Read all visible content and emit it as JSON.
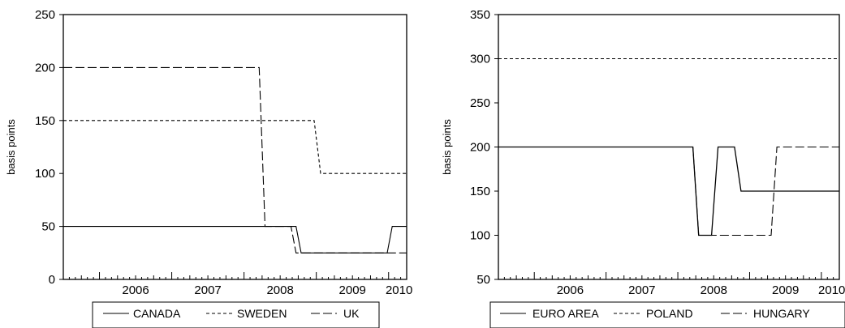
{
  "chart_data": [
    {
      "type": "line",
      "ylabel": "basis points",
      "xlabel": "",
      "ylim": [
        0,
        250
      ],
      "yticks": [
        0,
        50,
        100,
        150,
        200,
        250
      ],
      "xlim": [
        2005.5,
        2010.25
      ],
      "xtick_labels": [
        "2006",
        "2007",
        "2008",
        "2009",
        "2010"
      ],
      "legend_position": "bottom",
      "grid": false,
      "series": [
        {
          "name": "CANADA",
          "dash": "solid",
          "x": [
            2005.5,
            2008.72,
            2008.79,
            2009.98,
            2010.05,
            2010.25
          ],
          "y": [
            50,
            50,
            25,
            25,
            50,
            50
          ]
        },
        {
          "name": "SWEDEN",
          "dash": "short",
          "x": [
            2005.5,
            2008.97,
            2009.06,
            2010.25
          ],
          "y": [
            150,
            150,
            100,
            100
          ]
        },
        {
          "name": "UK",
          "dash": "long",
          "x": [
            2005.5,
            2008.21,
            2008.29,
            2008.65,
            2008.72,
            2010.25
          ],
          "y": [
            200,
            200,
            50,
            50,
            25,
            25
          ]
        }
      ]
    },
    {
      "type": "line",
      "ylabel": "basis points",
      "xlabel": "",
      "ylim": [
        50,
        350
      ],
      "yticks": [
        50,
        100,
        150,
        200,
        250,
        300,
        350
      ],
      "xlim": [
        2005.5,
        2010.25
      ],
      "xtick_labels": [
        "2006",
        "2007",
        "2008",
        "2009",
        "2010"
      ],
      "legend_position": "bottom",
      "grid": false,
      "series": [
        {
          "name": "EURO AREA",
          "dash": "solid",
          "x": [
            2005.5,
            2008.21,
            2008.29,
            2008.47,
            2008.56,
            2008.79,
            2008.88,
            2010.25
          ],
          "y": [
            200,
            200,
            100,
            100,
            200,
            200,
            150,
            150
          ],
          "stroke_width": 1.3
        },
        {
          "name": "POLAND",
          "dash": "short",
          "x": [
            2005.5,
            2010.25
          ],
          "y": [
            300,
            300
          ]
        },
        {
          "name": "HUNGARY",
          "dash": "long",
          "x": [
            2005.5,
            2008.21,
            2008.29,
            2009.3,
            2009.38,
            2010.25
          ],
          "y": [
            200,
            200,
            100,
            100,
            200,
            200
          ]
        }
      ]
    }
  ]
}
